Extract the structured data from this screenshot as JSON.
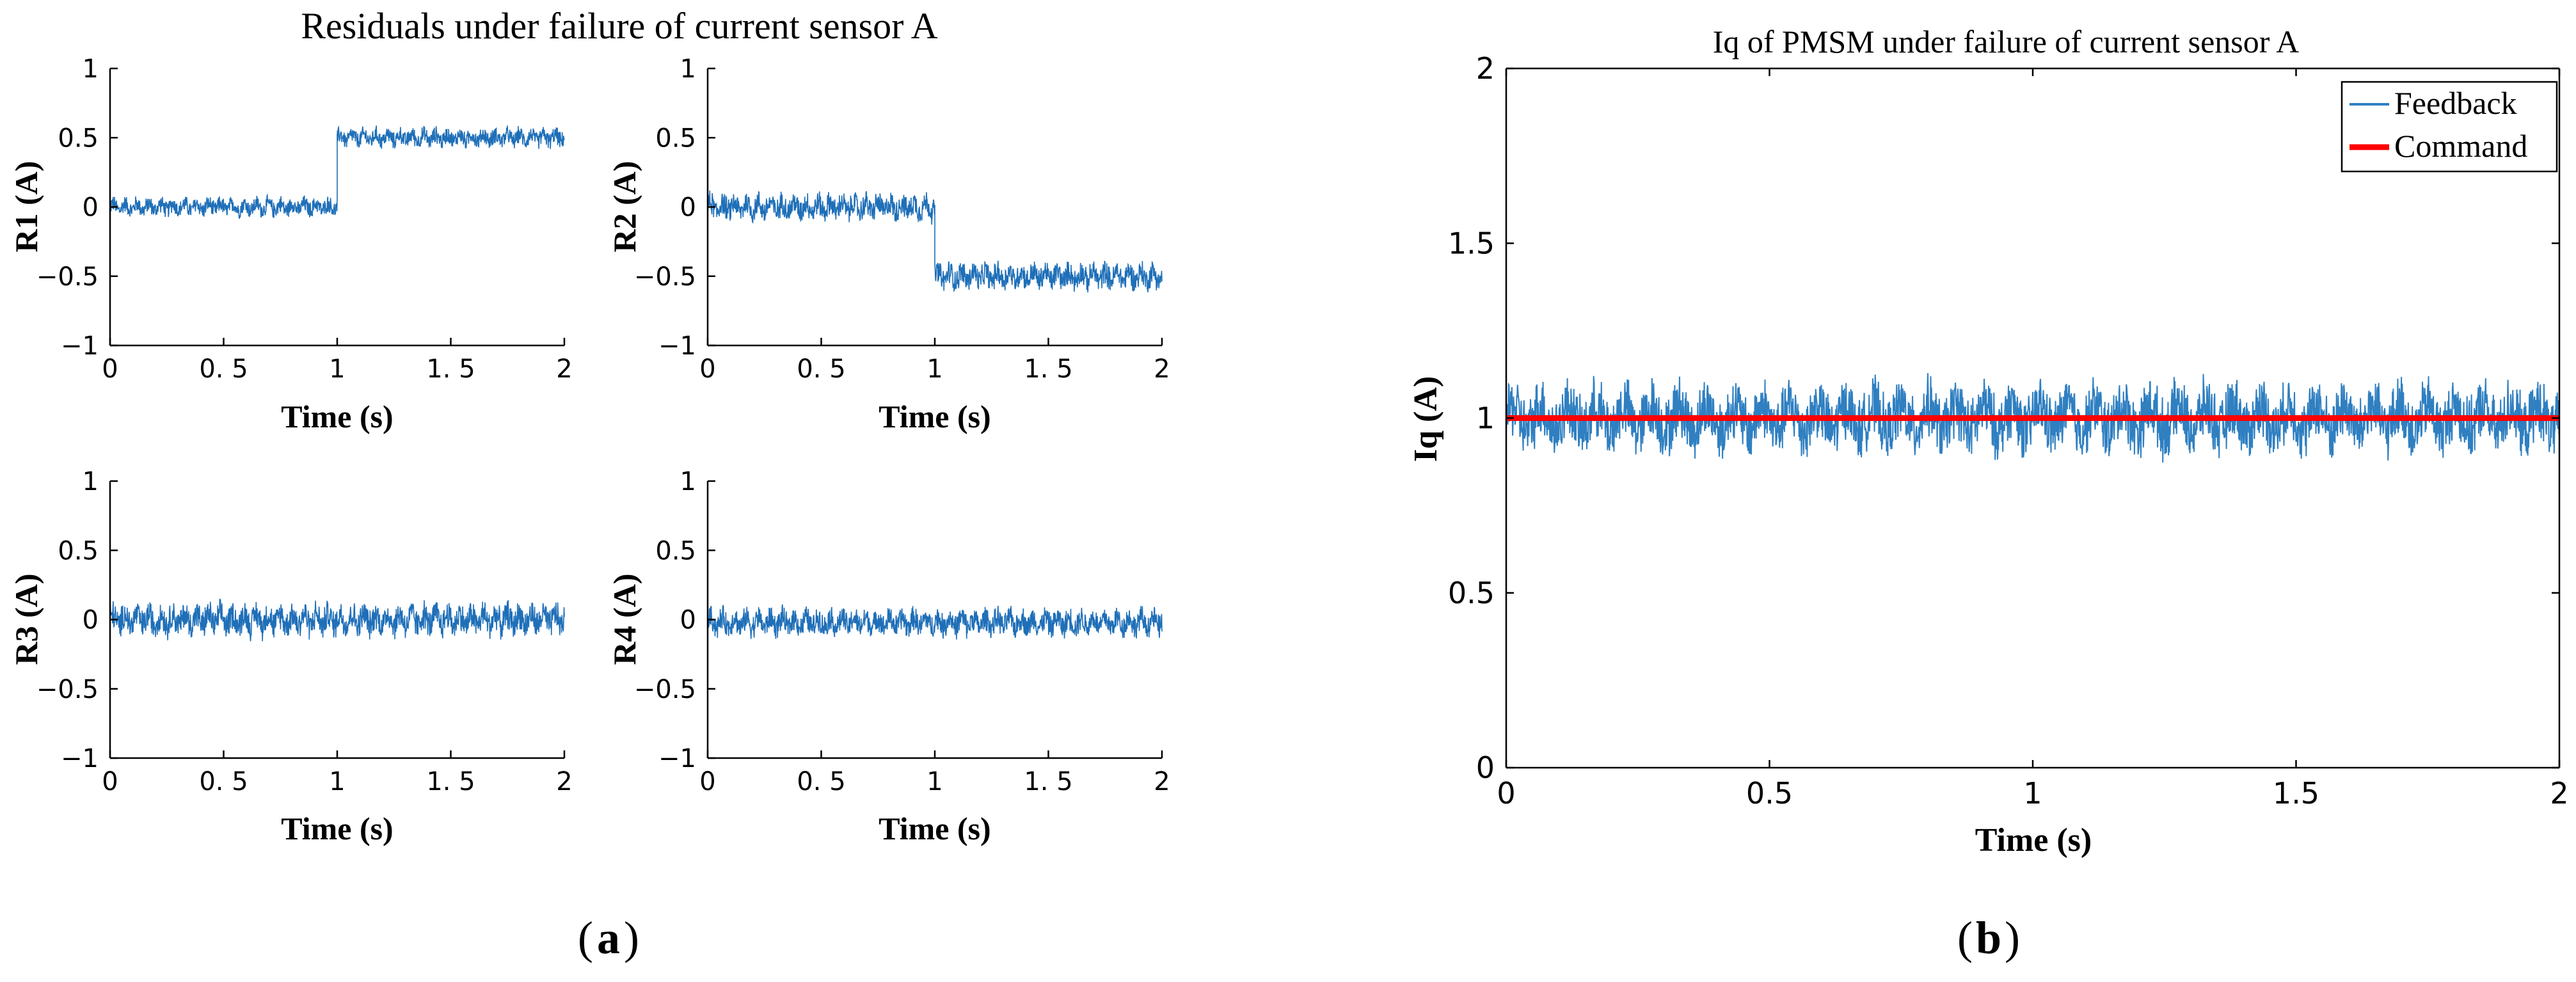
{
  "colors": {
    "feedback": "#2f7fc1",
    "residual": "#1f6fb8",
    "command": "#ff0000",
    "axis": "#000000"
  },
  "panel_labels": {
    "a": "a",
    "b": "b"
  },
  "chart_data": [
    {
      "id": "R1",
      "type": "line",
      "title": "Residuals under failure of current sensor A",
      "xlabel": "Time (s)",
      "ylabel": "R1 (A)",
      "xlim": [
        0,
        2
      ],
      "ylim": [
        -1,
        1
      ],
      "xticks": [
        0,
        0.5,
        1,
        1.5,
        2
      ],
      "xtick_labels": [
        "0",
        "0. 5",
        "1",
        "1. 5",
        "2"
      ],
      "yticks": [
        -1,
        -0.5,
        0,
        0.5,
        1
      ],
      "ytick_labels": [
        "−1",
        "−0.5",
        "0",
        "0.5",
        "1"
      ],
      "series": [
        {
          "name": "R1",
          "segments": [
            {
              "x_start": 0,
              "x_end": 1,
              "mean": 0.0,
              "amplitude": 0.07
            },
            {
              "x_start": 1,
              "x_end": 2,
              "mean": 0.5,
              "amplitude": 0.07
            }
          ]
        }
      ]
    },
    {
      "id": "R2",
      "type": "line",
      "xlabel": "Time (s)",
      "ylabel": "R2 (A)",
      "xlim": [
        0,
        2
      ],
      "ylim": [
        -1,
        1
      ],
      "xticks": [
        0,
        0.5,
        1,
        1.5,
        2
      ],
      "xtick_labels": [
        "0",
        "0. 5",
        "1",
        "1. 5",
        "2"
      ],
      "yticks": [
        -1,
        -0.5,
        0,
        0.5,
        1
      ],
      "ytick_labels": [
        "−1",
        "−0.5",
        "0",
        "0.5",
        "1"
      ],
      "series": [
        {
          "name": "R2",
          "segments": [
            {
              "x_start": 0,
              "x_end": 1,
              "mean": 0.0,
              "amplitude": 0.1
            },
            {
              "x_start": 1,
              "x_end": 2,
              "mean": -0.5,
              "amplitude": 0.1
            }
          ]
        }
      ]
    },
    {
      "id": "R3",
      "type": "line",
      "xlabel": "Time (s)",
      "ylabel": "R3 (A)",
      "xlim": [
        0,
        2
      ],
      "ylim": [
        -1,
        1
      ],
      "xticks": [
        0,
        0.5,
        1,
        1.5,
        2
      ],
      "xtick_labels": [
        "0",
        "0. 5",
        "1",
        "1. 5",
        "2"
      ],
      "yticks": [
        -1,
        -0.5,
        0,
        0.5,
        1
      ],
      "ytick_labels": [
        "−1",
        "−0.5",
        "0",
        "0.5",
        "1"
      ],
      "series": [
        {
          "name": "R3",
          "segments": [
            {
              "x_start": 0,
              "x_end": 2,
              "mean": 0.0,
              "amplitude": 0.12
            }
          ]
        }
      ]
    },
    {
      "id": "R4",
      "type": "line",
      "xlabel": "Time (s)",
      "ylabel": "R4 (A)",
      "xlim": [
        0,
        2
      ],
      "ylim": [
        -1,
        1
      ],
      "xticks": [
        0,
        0.5,
        1,
        1.5,
        2
      ],
      "xtick_labels": [
        "0",
        "0. 5",
        "1",
        "1. 5",
        "2"
      ],
      "yticks": [
        -1,
        -0.5,
        0,
        0.5,
        1
      ],
      "ytick_labels": [
        "−1",
        "−0.5",
        "0",
        "0.5",
        "1"
      ],
      "series": [
        {
          "name": "R4",
          "segments": [
            {
              "x_start": 0,
              "x_end": 2,
              "mean": -0.02,
              "amplitude": 0.1
            }
          ]
        }
      ]
    },
    {
      "id": "Iq",
      "type": "line",
      "title": "Iq of PMSM under failure of current sensor A",
      "xlabel": "Time (s)",
      "ylabel": "Iq (A)",
      "xlim": [
        0,
        2
      ],
      "ylim": [
        0,
        2
      ],
      "xticks": [
        0,
        0.5,
        1,
        1.5,
        2
      ],
      "xtick_labels": [
        "0",
        "0.5",
        "1",
        "1.5",
        "2"
      ],
      "yticks": [
        0,
        0.5,
        1,
        1.5,
        2
      ],
      "ytick_labels": [
        "0",
        "0.5",
        "1",
        "1.5",
        "2"
      ],
      "legend": {
        "position": "top-right",
        "entries": [
          "Feedback",
          "Command"
        ]
      },
      "series": [
        {
          "name": "Feedback",
          "segments": [
            {
              "x_start": 0,
              "x_end": 2,
              "mean": 1.0,
              "amplitude": 0.1
            }
          ]
        },
        {
          "name": "Command",
          "constant": 1.0
        }
      ]
    }
  ]
}
